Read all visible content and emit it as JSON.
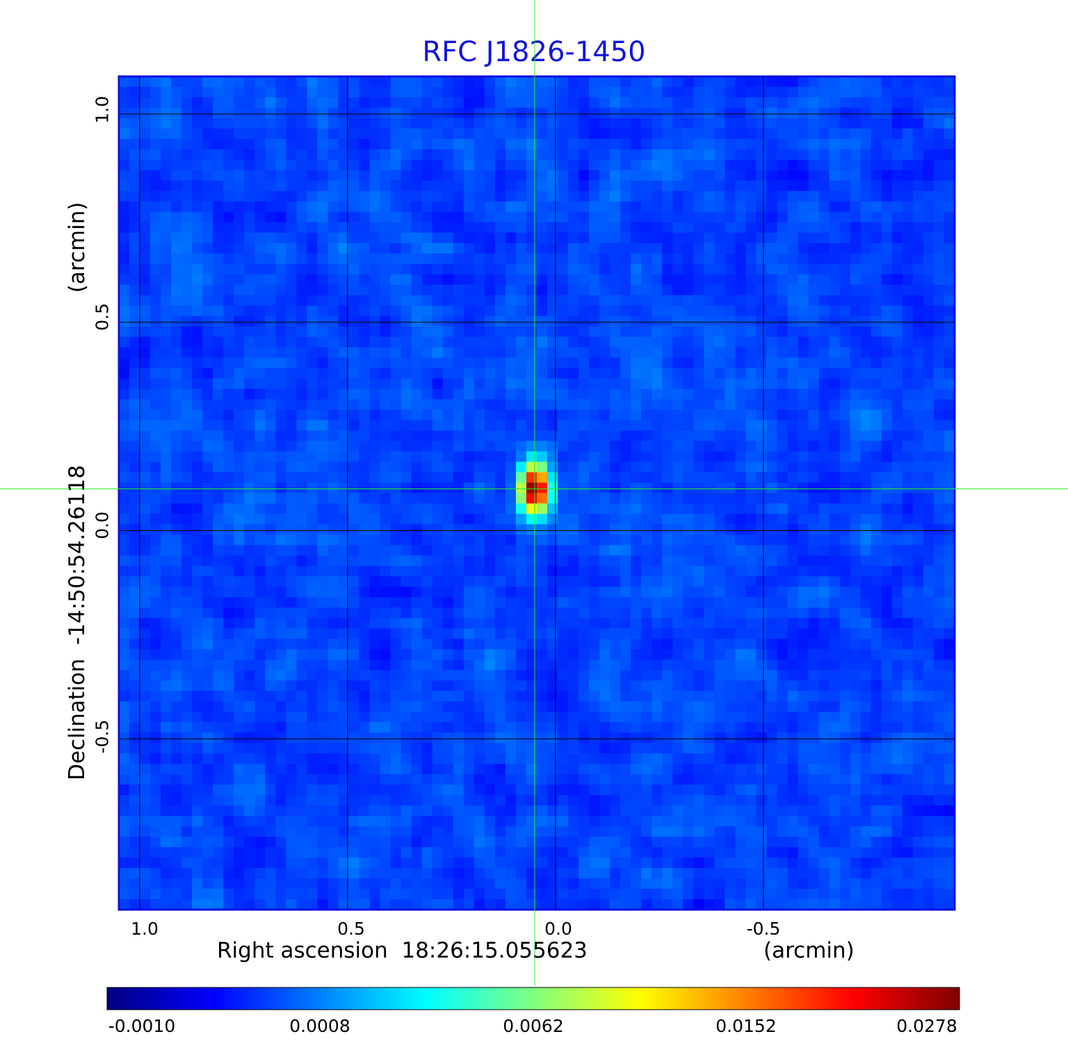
{
  "title": "RFC J1826-1450",
  "colors": {
    "title": "#1414d8",
    "frame": "#1010e0",
    "grid": "#000000",
    "crosshair": "#22ee22",
    "colormap": [
      "#00007f",
      "#0000ff",
      "#0080ff",
      "#00ffff",
      "#80ff80",
      "#ffff00",
      "#ff8000",
      "#ff0000",
      "#7f0000"
    ]
  },
  "chart_data": {
    "type": "heatmap",
    "title": "RFC J1826-1450",
    "xlabel": "Right ascension  18:26:15.055623",
    "xunit": "(arcmin)",
    "ylabel": "Declination  -14:50:54.26118",
    "yunit": "(arcmin)",
    "xlim": [
      1.05,
      -0.96
    ],
    "ylim": [
      -0.91,
      1.09
    ],
    "x_ticks": [
      "1.0",
      "0.5",
      "0.0",
      "-0.5"
    ],
    "x_tick_values": [
      1.0,
      0.5,
      0.0,
      -0.5
    ],
    "y_ticks": [
      "1.0",
      "0.5",
      "0.0",
      "-0.5"
    ],
    "y_tick_values": [
      1.0,
      0.5,
      0.0,
      -0.5
    ],
    "grid": true,
    "crosshair": {
      "x": 0.05,
      "y": 0.1
    },
    "source_peak": {
      "x": 0.05,
      "y": 0.1,
      "value": 0.0278
    },
    "colorbar": {
      "ticks": [
        "-0.0010",
        "0.0008",
        "0.0062",
        "0.0152",
        "0.0278"
      ],
      "tick_values": [
        -0.001,
        0.0008,
        0.0062,
        0.0152,
        0.0278
      ],
      "colormap": "jet"
    }
  }
}
